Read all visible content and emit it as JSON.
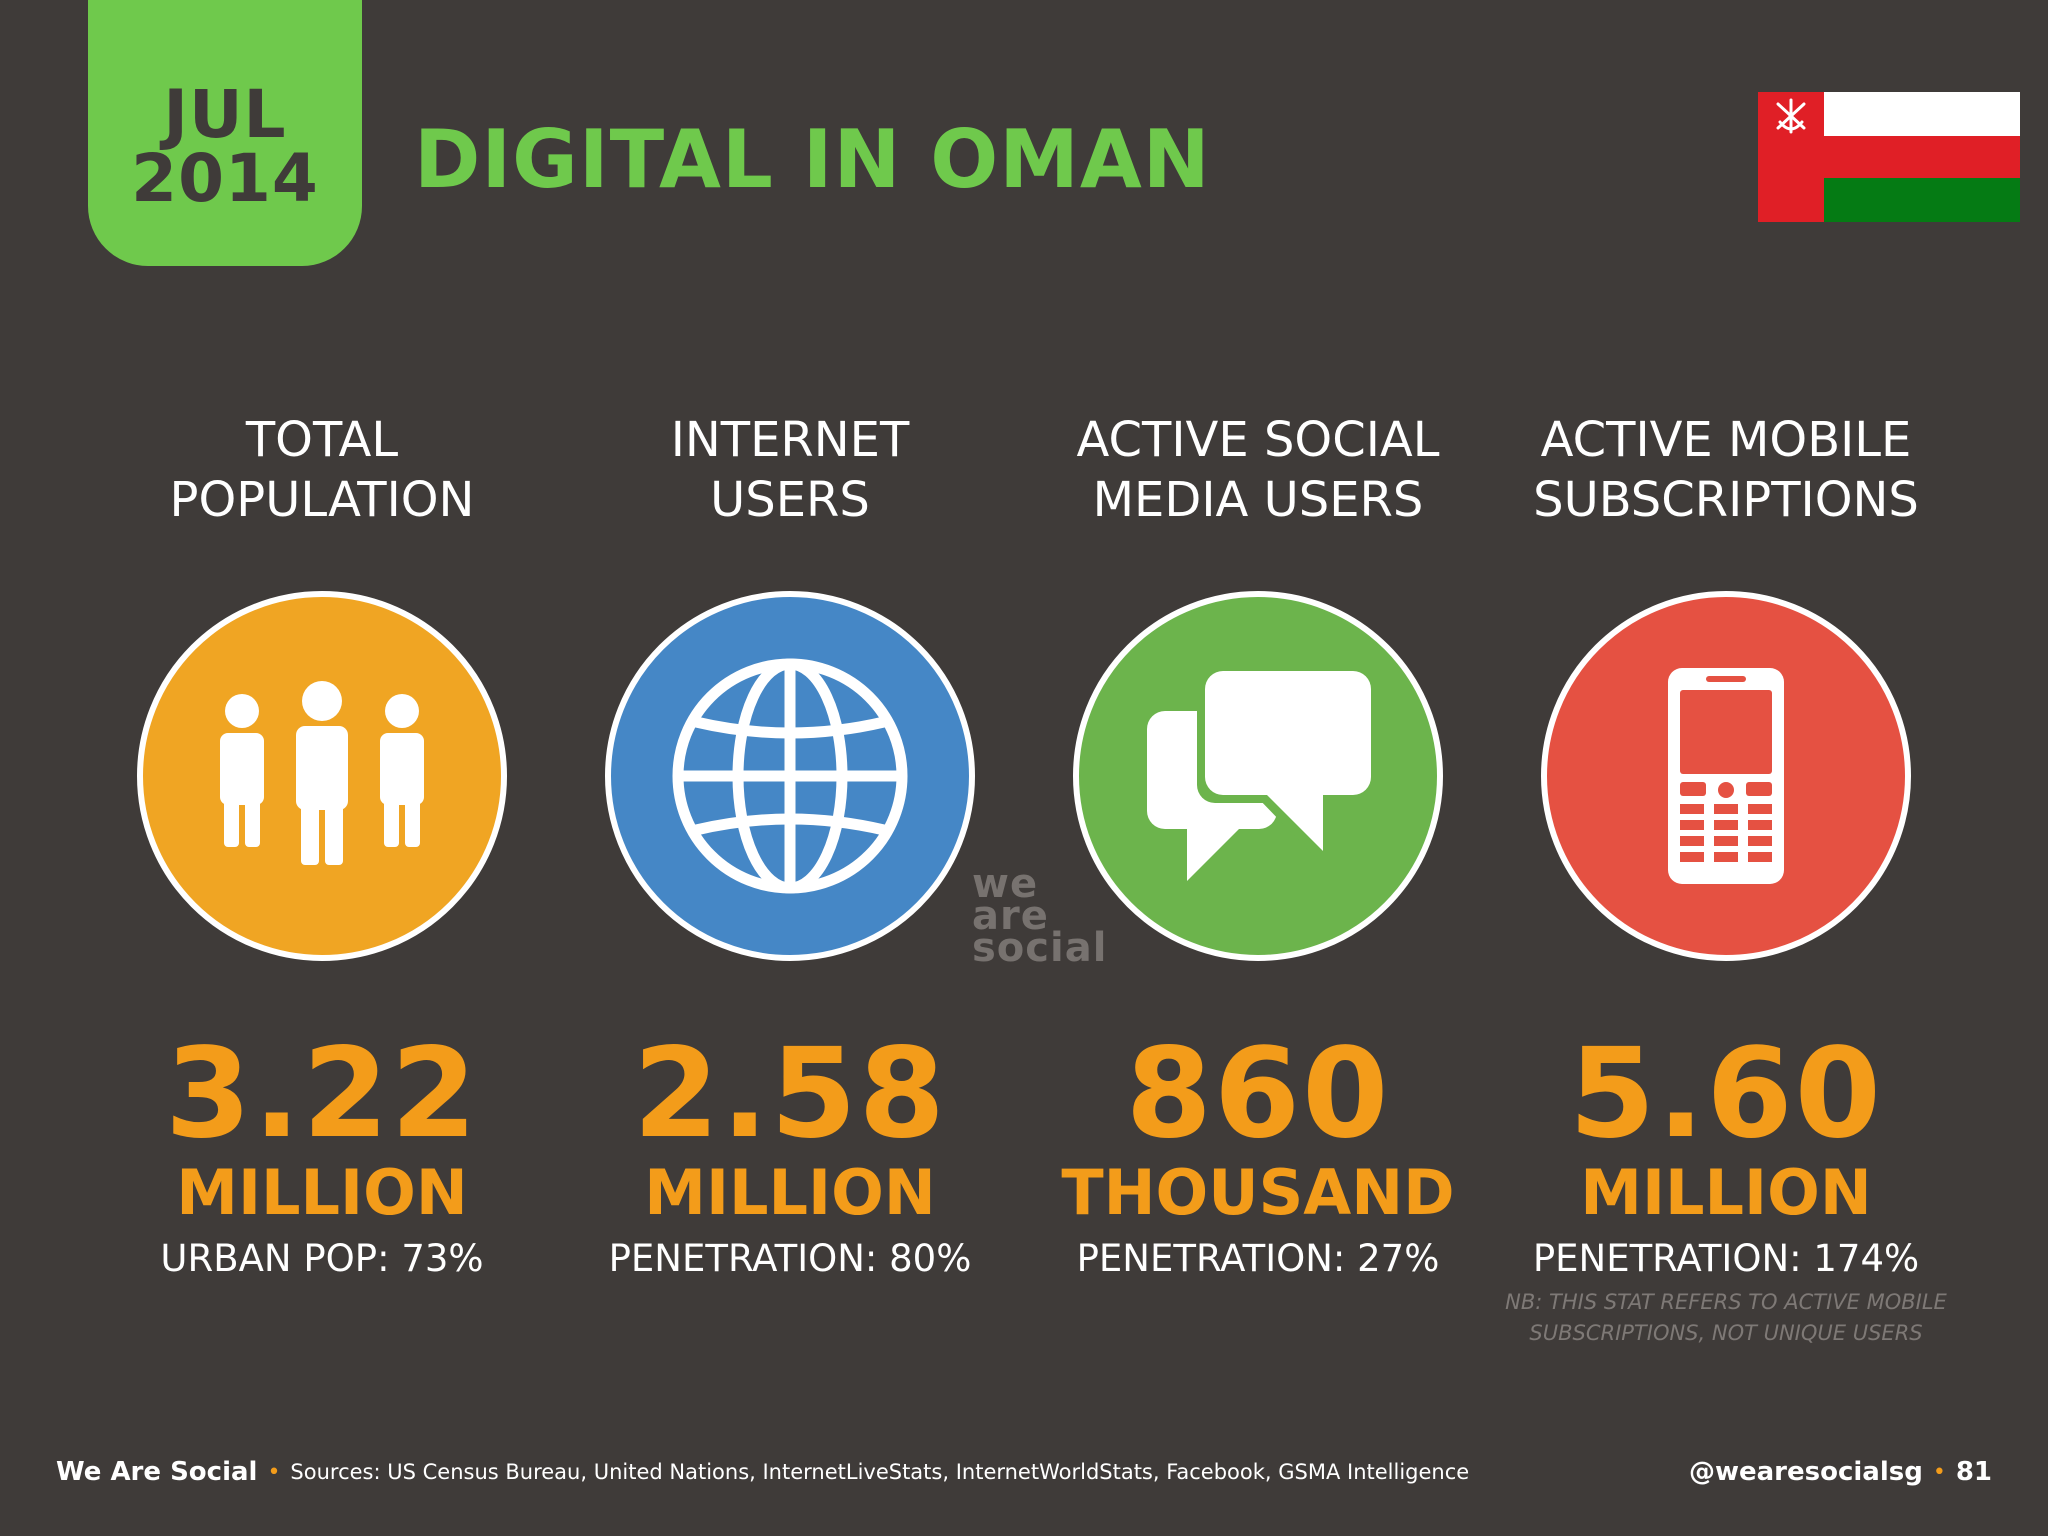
{
  "header": {
    "month": "JUL",
    "year": "2014",
    "title": "DIGITAL IN OMAN"
  },
  "flag": {
    "country": "Oman",
    "colors": {
      "red": "#e01f26",
      "white": "#ffffff",
      "green": "#057b14"
    }
  },
  "stats": [
    {
      "label_line1": "TOTAL",
      "label_line2": "POPULATION",
      "icon": "people-icon",
      "circle_color": "#f0a523",
      "value": "3.22",
      "unit": "MILLION",
      "sub": "URBAN POP: 73%"
    },
    {
      "label_line1": "INTERNET",
      "label_line2": "USERS",
      "icon": "globe-icon",
      "circle_color": "#4587c6",
      "value": "2.58",
      "unit": "MILLION",
      "sub": "PENETRATION: 80%"
    },
    {
      "label_line1": "ACTIVE SOCIAL",
      "label_line2": "MEDIA USERS",
      "icon": "speech-bubbles-icon",
      "circle_color": "#6cb44c",
      "value": "860",
      "unit": "THOUSAND",
      "sub": "PENETRATION: 27%"
    },
    {
      "label_line1": "ACTIVE MOBILE",
      "label_line2": "SUBSCRIPTIONS",
      "icon": "mobile-phone-icon",
      "circle_color": "#e55142",
      "value": "5.60",
      "unit": "MILLION",
      "sub": "PENETRATION: 174%",
      "note_line1": "NB: THIS STAT REFERS TO ACTIVE MOBILE",
      "note_line2": "SUBSCRIPTIONS, NOT UNIQUE USERS"
    }
  ],
  "watermark": {
    "line1": "we",
    "line2": "are",
    "line3": "social"
  },
  "footer": {
    "brand": "We Are Social",
    "sources": "Sources: US Census Bureau, United Nations, InternetLiveStats, InternetWorldStats, Facebook, GSMA Intelligence",
    "handle": "@wearesocialsg",
    "page": "81"
  },
  "colors": {
    "background": "#3f3b39",
    "accent_green": "#6fc94c",
    "accent_orange": "#f39c1a"
  }
}
